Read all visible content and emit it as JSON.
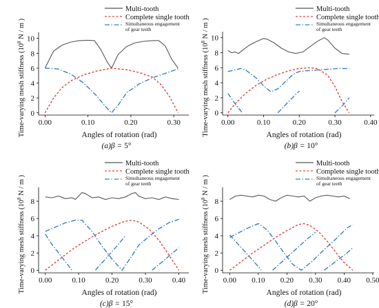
{
  "shared": {
    "ylabel": "Time-varying mesh stiffness (10",
    "ylabel_sup": "8",
    "ylabel_tail": "N / m )",
    "xlabel": "Angles of rotation (rad)",
    "legend": [
      {
        "label": "Multi-tooth",
        "color": "#555555",
        "dash": "none"
      },
      {
        "label": "Complete single tooth",
        "color": "#e0403c",
        "dash": "3,2.5"
      },
      {
        "label": "Simultaneous engagement",
        "label2": "of gear teeth",
        "color": "#3a7fc4",
        "dash": "7,2.5,1.5,2.5"
      }
    ],
    "beta_symbol": "β ="
  },
  "chart_data": [
    {
      "type": "line",
      "caption_prefix": "(a)",
      "beta": "5°",
      "xticks": [
        "0.00",
        "0.10",
        "0.20",
        "0.30"
      ],
      "xtick_values": [
        0,
        0.1,
        0.2,
        0.3
      ],
      "yticks": [
        "0",
        "2",
        "4",
        "6",
        "8",
        "10"
      ],
      "yrange": [
        -0.3,
        10.8
      ],
      "xrange": [
        -0.015,
        0.335
      ],
      "series": [
        {
          "name": "Multi-tooth",
          "x": [
            0.0,
            0.02,
            0.04,
            0.06,
            0.08,
            0.1,
            0.115,
            0.13,
            0.145,
            0.155,
            0.17,
            0.19,
            0.21,
            0.23,
            0.25,
            0.265,
            0.28,
            0.295,
            0.31
          ],
          "y": [
            6.0,
            8.3,
            9.1,
            9.5,
            9.7,
            9.75,
            9.7,
            8.5,
            6.8,
            6.0,
            7.8,
            8.9,
            9.4,
            9.6,
            9.7,
            9.7,
            9.0,
            7.2,
            6.0
          ]
        },
        {
          "name": "Complete single tooth",
          "x": [
            0.0,
            0.02,
            0.04,
            0.06,
            0.09,
            0.12,
            0.155,
            0.19,
            0.22,
            0.25,
            0.27,
            0.29,
            0.31
          ],
          "y": [
            0.0,
            2.0,
            3.4,
            4.3,
            5.1,
            5.6,
            6.0,
            5.8,
            5.4,
            4.8,
            3.8,
            2.2,
            0.0
          ]
        },
        {
          "name": "Simultaneous engagement",
          "x": [
            0.0,
            0.03,
            0.06,
            0.09,
            0.12,
            0.14,
            0.155,
            0.17,
            0.19,
            0.22,
            0.25,
            0.28,
            0.31
          ],
          "y": [
            6.0,
            5.9,
            5.2,
            4.0,
            2.3,
            0.9,
            0.0,
            1.0,
            2.7,
            3.9,
            4.7,
            5.3,
            5.9
          ]
        }
      ]
    },
    {
      "type": "line",
      "caption_prefix": "(b)",
      "beta": "10°",
      "xticks": [
        "0.00",
        "0.10",
        "0.20",
        "0.30",
        "0.40"
      ],
      "xtick_values": [
        0,
        0.1,
        0.2,
        0.3,
        0.4
      ],
      "yticks": [
        "0",
        "2",
        "4",
        "6",
        "8",
        "10"
      ],
      "yrange": [
        -0.3,
        10.8
      ],
      "xrange": [
        -0.015,
        0.41
      ],
      "series": [
        {
          "name": "Multi-tooth",
          "x": [
            0.0,
            0.01,
            0.02,
            0.03,
            0.04,
            0.06,
            0.08,
            0.1,
            0.11,
            0.13,
            0.15,
            0.17,
            0.19,
            0.21,
            0.23,
            0.25,
            0.27,
            0.28,
            0.3,
            0.32,
            0.34
          ],
          "y": [
            8.3,
            8.0,
            8.1,
            7.9,
            8.3,
            9.0,
            9.5,
            9.9,
            9.8,
            9.3,
            8.6,
            8.1,
            7.9,
            8.1,
            8.8,
            9.5,
            10.0,
            9.7,
            8.6,
            7.9,
            7.8
          ]
        },
        {
          "name": "Complete single tooth",
          "x": [
            0.0,
            0.02,
            0.05,
            0.08,
            0.11,
            0.14,
            0.17,
            0.2,
            0.23,
            0.25,
            0.28,
            0.3,
            0.32,
            0.34
          ],
          "y": [
            0.0,
            1.2,
            2.6,
            3.7,
            4.5,
            5.1,
            5.6,
            5.9,
            6.0,
            5.9,
            5.0,
            3.5,
            1.5,
            0.0
          ]
        },
        {
          "name": "Simultaneous engagement",
          "x": [
            0.0,
            0.02,
            0.035,
            0.05,
            0.08,
            0.1,
            0.12,
            0.14,
            0.16,
            0.18,
            0.19,
            0.2,
            0.22,
            0.25,
            0.28,
            0.31,
            0.34
          ],
          "y": [
            5.5,
            5.7,
            5.9,
            5.7,
            4.6,
            3.6,
            2.8,
            3.2,
            4.1,
            5.0,
            5.3,
            5.5,
            5.6,
            5.7,
            5.8,
            5.9,
            5.9
          ]
        },
        {
          "name": "Simultaneous engagement",
          "x": [
            0.0,
            0.02,
            0.04
          ],
          "y": [
            2.6,
            1.2,
            0.0
          ]
        },
        {
          "name": "Simultaneous engagement",
          "x": [
            0.14,
            0.17,
            0.2
          ],
          "y": [
            0.0,
            1.5,
            2.9
          ]
        },
        {
          "name": "Simultaneous engagement",
          "x": [
            0.3,
            0.32,
            0.34
          ],
          "y": [
            0.0,
            0.9,
            2.0
          ]
        }
      ]
    },
    {
      "type": "line",
      "caption_prefix": "(c)",
      "beta": "15°",
      "xticks": [
        "0.00",
        "0.10",
        "0.20",
        "0.30",
        "0.40"
      ],
      "xtick_values": [
        0,
        0.1,
        0.2,
        0.3,
        0.4
      ],
      "yticks": [
        "0",
        "2",
        "4",
        "6",
        "8"
      ],
      "yrange": [
        -0.3,
        9.6
      ],
      "xrange": [
        -0.02,
        0.43
      ],
      "series": [
        {
          "name": "Multi-tooth",
          "x": [
            0.0,
            0.02,
            0.04,
            0.06,
            0.08,
            0.09,
            0.1,
            0.11,
            0.12,
            0.14,
            0.16,
            0.18,
            0.2,
            0.22,
            0.24,
            0.26,
            0.27,
            0.28,
            0.3,
            0.32,
            0.34,
            0.36,
            0.38,
            0.4
          ],
          "y": [
            8.5,
            8.4,
            8.6,
            8.3,
            8.4,
            8.2,
            8.6,
            9.0,
            8.9,
            8.4,
            8.5,
            8.2,
            8.4,
            8.3,
            8.5,
            8.9,
            9.0,
            8.6,
            8.3,
            8.4,
            8.2,
            8.5,
            8.3,
            8.2
          ]
        },
        {
          "name": "Complete single tooth",
          "x": [
            0.0,
            0.04,
            0.08,
            0.12,
            0.16,
            0.2,
            0.24,
            0.26,
            0.28,
            0.31,
            0.34,
            0.37,
            0.4
          ],
          "y": [
            0.0,
            1.2,
            2.4,
            3.4,
            4.3,
            5.1,
            5.7,
            5.8,
            5.6,
            4.8,
            3.5,
            1.8,
            0.0
          ]
        },
        {
          "name": "Simultaneous engagement",
          "x": [
            0.0,
            0.03,
            0.06,
            0.09,
            0.11,
            0.14,
            0.17,
            0.2,
            0.23,
            0.26,
            0.28,
            0.31,
            0.34,
            0.37,
            0.4
          ],
          "y": [
            4.5,
            5.0,
            5.5,
            5.8,
            5.8,
            4.5,
            2.8,
            1.3,
            0.0,
            1.7,
            2.9,
            3.9,
            4.8,
            5.5,
            5.9
          ]
        },
        {
          "name": "Simultaneous engagement",
          "x": [
            0.0,
            0.02,
            0.04,
            0.06,
            0.08
          ],
          "y": [
            4.2,
            3.0,
            2.0,
            1.0,
            0.0
          ]
        },
        {
          "name": "Simultaneous engagement",
          "x": [
            0.15,
            0.18,
            0.21,
            0.24
          ],
          "y": [
            0.0,
            1.3,
            2.6,
            4.0
          ]
        },
        {
          "name": "Simultaneous engagement",
          "x": [
            0.32,
            0.36,
            0.4
          ],
          "y": [
            0.0,
            1.3,
            2.6
          ]
        }
      ]
    },
    {
      "type": "line",
      "caption_prefix": "(d)",
      "beta": "20°",
      "xticks": [
        "0.00",
        "0.10",
        "0.20",
        "0.30",
        "0.40",
        "0.50"
      ],
      "xtick_values": [
        0,
        0.1,
        0.2,
        0.3,
        0.4,
        0.5
      ],
      "yticks": [
        "0",
        "2",
        "4",
        "6",
        "8"
      ],
      "yrange": [
        -0.3,
        9.6
      ],
      "xrange": [
        -0.025,
        0.505
      ],
      "series": [
        {
          "name": "Multi-tooth",
          "x": [
            0.0,
            0.02,
            0.04,
            0.06,
            0.08,
            0.1,
            0.12,
            0.14,
            0.16,
            0.18,
            0.2,
            0.22,
            0.24,
            0.26,
            0.28,
            0.3,
            0.32,
            0.34,
            0.36,
            0.38,
            0.4,
            0.42
          ],
          "y": [
            8.2,
            8.6,
            8.7,
            8.6,
            8.5,
            8.7,
            8.6,
            8.2,
            8.0,
            8.4,
            8.7,
            8.6,
            8.5,
            8.6,
            8.0,
            8.4,
            8.6,
            8.7,
            8.6,
            8.5,
            8.6,
            8.3
          ]
        },
        {
          "name": "Complete single tooth",
          "x": [
            0.0,
            0.04,
            0.08,
            0.12,
            0.16,
            0.2,
            0.24,
            0.26,
            0.28,
            0.31,
            0.34,
            0.37,
            0.4,
            0.43
          ],
          "y": [
            0.0,
            1.0,
            2.0,
            2.9,
            3.8,
            4.6,
            5.3,
            5.4,
            5.2,
            4.5,
            3.4,
            2.1,
            0.9,
            0.0
          ]
        },
        {
          "name": "Simultaneous engagement",
          "x": [
            0.0,
            0.04,
            0.07,
            0.1,
            0.13,
            0.16,
            0.19,
            0.22,
            0.25,
            0.29,
            0.33,
            0.37,
            0.41,
            0.43
          ],
          "y": [
            3.8,
            4.5,
            5.0,
            5.4,
            4.7,
            3.4,
            2.0,
            0.7,
            0.0,
            1.1,
            2.4,
            3.6,
            4.9,
            5.3
          ]
        },
        {
          "name": "Simultaneous engagement",
          "x": [
            0.0,
            0.03,
            0.06,
            0.09,
            0.11
          ],
          "y": [
            4.1,
            3.0,
            1.9,
            0.8,
            0.0
          ]
        },
        {
          "name": "Simultaneous engagement",
          "x": [
            0.15,
            0.19,
            0.23,
            0.27,
            0.3
          ],
          "y": [
            0.0,
            1.2,
            2.4,
            3.6,
            4.4
          ]
        },
        {
          "name": "Simultaneous engagement",
          "x": [
            0.33,
            0.37,
            0.41,
            0.43
          ],
          "y": [
            0.0,
            1.0,
            2.0,
            2.6
          ]
        }
      ]
    }
  ]
}
